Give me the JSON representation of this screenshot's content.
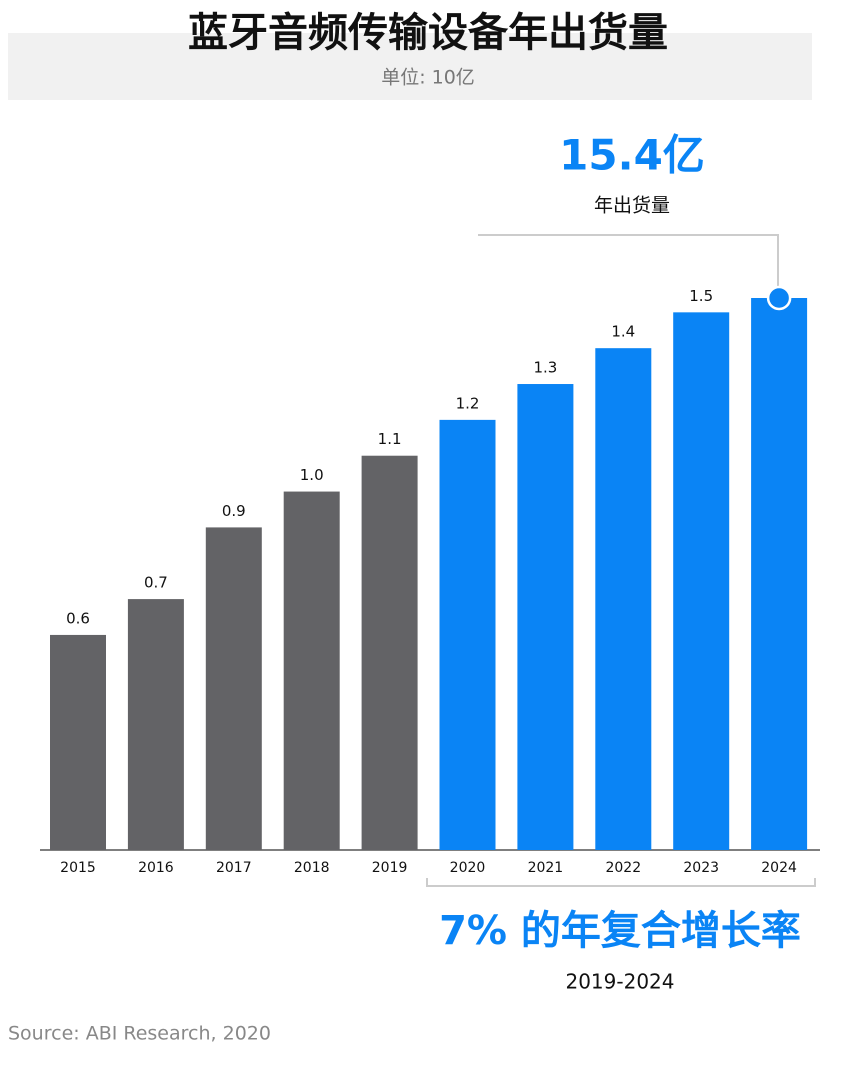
{
  "chart_data": {
    "type": "bar",
    "title": "蓝牙音频传输设备年出货量",
    "subtitle": "单位: 10亿",
    "categories": [
      "2015",
      "2016",
      "2017",
      "2018",
      "2019",
      "2020",
      "2021",
      "2022",
      "2023",
      "2024"
    ],
    "values": [
      0.6,
      0.7,
      0.9,
      1.0,
      1.1,
      1.2,
      1.3,
      1.4,
      1.5,
      1.54
    ],
    "value_labels": [
      "0.6",
      "0.7",
      "0.9",
      "1.0",
      "1.1",
      "1.2",
      "1.3",
      "1.4",
      "1.5",
      null
    ],
    "colors": [
      "#636366",
      "#636366",
      "#636366",
      "#636366",
      "#636366",
      "#0a84f5",
      "#0a84f5",
      "#0a84f5",
      "#0a84f5",
      "#0a84f5"
    ],
    "callout_value": "15.4亿",
    "callout_label": "年出货量",
    "growth_rate": "7% 的年复合增长率",
    "growth_period": "2019-2024",
    "source": "Source: ABI Research, 2020"
  }
}
